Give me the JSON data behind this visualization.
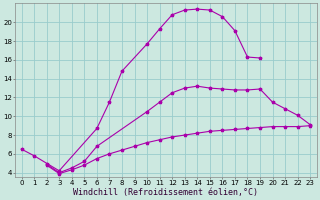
{
  "xlabel": "Windchill (Refroidissement éolien,°C)",
  "background_color": "#cce8e0",
  "grid_color": "#99cccc",
  "line_color": "#aa00aa",
  "xlim": [
    -0.5,
    23.5
  ],
  "ylim": [
    3.5,
    22
  ],
  "xticks": [
    0,
    1,
    2,
    3,
    4,
    5,
    6,
    7,
    8,
    9,
    10,
    11,
    12,
    13,
    14,
    15,
    16,
    17,
    18,
    19,
    20,
    21,
    22,
    23
  ],
  "yticks": [
    4,
    6,
    8,
    10,
    12,
    14,
    16,
    18,
    20
  ],
  "line1_x": [
    0,
    1,
    3,
    6,
    7,
    8,
    10,
    11,
    12,
    13,
    14,
    15,
    16,
    17,
    18,
    19
  ],
  "line1_y": [
    6.5,
    5.8,
    4.2,
    8.7,
    11.5,
    14.8,
    17.7,
    19.3,
    20.8,
    21.3,
    21.4,
    21.3,
    20.6,
    19.1,
    16.3,
    16.2
  ],
  "line2_x": [
    2,
    3,
    4,
    5,
    6,
    10,
    11,
    12,
    13,
    14,
    15,
    16,
    17,
    18,
    19,
    20,
    21,
    22,
    23
  ],
  "line2_y": [
    4.9,
    4.0,
    4.5,
    5.2,
    6.8,
    10.5,
    11.5,
    12.5,
    13.0,
    13.2,
    13.0,
    12.9,
    12.8,
    12.8,
    12.9,
    11.5,
    10.8,
    10.1,
    9.1
  ],
  "line3_x": [
    2,
    3,
    4,
    5,
    6,
    7,
    8,
    9,
    10,
    11,
    12,
    13,
    14,
    15,
    16,
    17,
    18,
    19,
    20,
    21,
    22,
    23
  ],
  "line3_y": [
    4.8,
    3.9,
    4.3,
    4.8,
    5.5,
    6.0,
    6.4,
    6.8,
    7.2,
    7.5,
    7.8,
    8.0,
    8.2,
    8.4,
    8.5,
    8.6,
    8.7,
    8.8,
    8.9,
    8.9,
    8.9,
    9.0
  ],
  "tick_fontsize": 5.0,
  "label_fontsize": 6.0,
  "marker": "*",
  "markersize": 2.5,
  "linewidth": 0.8
}
